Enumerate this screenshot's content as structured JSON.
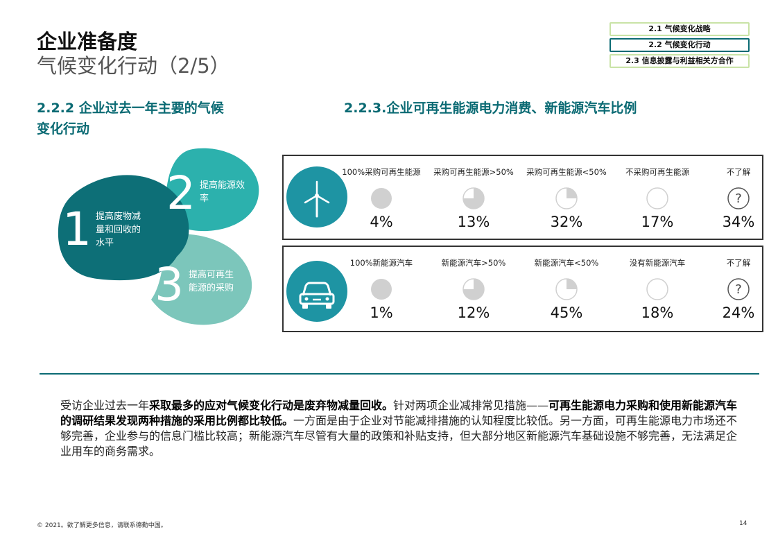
{
  "header": {
    "title": "企业准备度",
    "subtitle": "气候变化行动（2/5）"
  },
  "nav": [
    {
      "label": "2.1 气候变化战略",
      "active": false
    },
    {
      "label": "2.2 气候变化行动",
      "active": true
    },
    {
      "label": "2.3 信息披露与利益相关方合作",
      "active": false
    }
  ],
  "left_section": {
    "heading_line1": "2.2.2 企业过去一年主要的气候",
    "heading_line2": "变化行动",
    "petals": [
      {
        "number": "1",
        "line1": "提高废物减",
        "line2": "量和回收的",
        "line3": "水平",
        "color": "#0d6f77"
      },
      {
        "number": "2",
        "line1": "提高能源效",
        "line2": "率",
        "color": "#2cb1ad"
      },
      {
        "number": "3",
        "line1": "提高可再生",
        "line2": "能源的采购",
        "color": "#7cc6bb"
      }
    ]
  },
  "right_section": {
    "heading": "2.2.3.企业可再生能源电力消费、新能源汽车比例",
    "panels": [
      {
        "icon": "wind-turbine-icon",
        "columns": [
          {
            "label": "100%采购可再生能源",
            "value": "4%",
            "fill": 1
          },
          {
            "label": "采购可再生能源>50%",
            "value": "13%",
            "fill": 0.75
          },
          {
            "label": "采购可再生能源<50%",
            "value": "32%",
            "fill": 0.25
          },
          {
            "label": "不采购可再生能源",
            "value": "17%",
            "fill": 0
          },
          {
            "label": "不了解",
            "value": "34%",
            "fill": "unknown"
          }
        ]
      },
      {
        "icon": "car-icon",
        "columns": [
          {
            "label": "100%新能源汽车",
            "value": "1%",
            "fill": 1
          },
          {
            "label": "新能源汽车>50%",
            "value": "12%",
            "fill": 0.75
          },
          {
            "label": "新能源汽车<50%",
            "value": "45%",
            "fill": 0.25
          },
          {
            "label": "没有新能源汽车",
            "value": "18%",
            "fill": 0
          },
          {
            "label": "不了解",
            "value": "24%",
            "fill": "unknown"
          }
        ]
      }
    ]
  },
  "summary": {
    "p1": "受访企业过去一年",
    "b1": "采取最多的应对气候变化行动是废弃物减量回收。",
    "p2": "针对两项企业减排常见措施——",
    "b2": "可再生能源电力采购和使用新能源汽车的调研结果发现两种措施的采用比例都比较低。",
    "p3": "一方面是由于企业对节能减排措施的认知程度比较低。另一方面，可再生能源电力市场还不够完善，企业参与的信息门槛比较高；新能源汽车尽管有大量的政策和补贴支持，但大部分地区新能源汽车基础设施不够完善，无法满足企业用车的商务需求。"
  },
  "footer": {
    "copyright": "© 2021。欲了解更多信息，请联系德勤中国。",
    "page_number": "14"
  },
  "colors": {
    "accent": "#0a6a73",
    "icon_circle": "#1e94a3",
    "fill_gray": "#d0d0d0"
  }
}
